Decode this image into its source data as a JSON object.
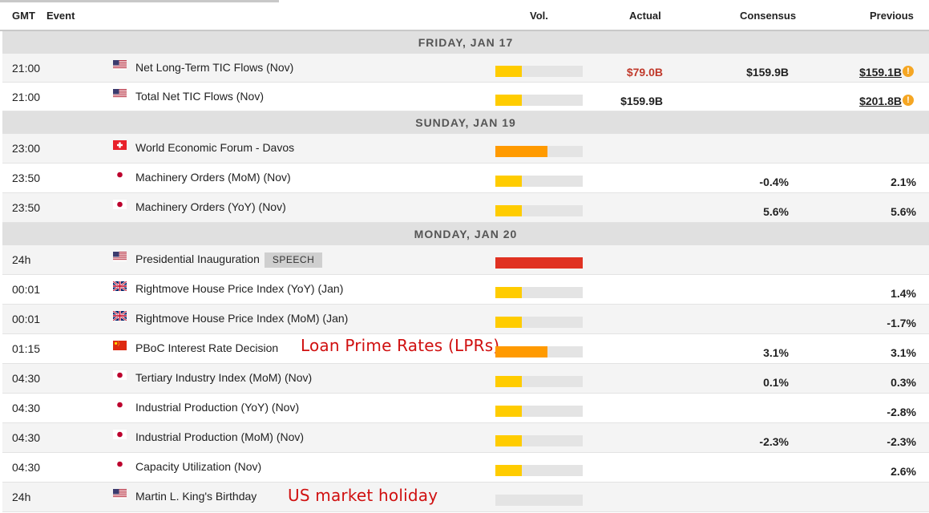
{
  "header": {
    "gmt": "GMT",
    "event": "Event",
    "vol": "Vol.",
    "actual": "Actual",
    "consensus": "Consensus",
    "previous": "Previous"
  },
  "colors": {
    "vol_low": "#ffcc00",
    "vol_medium": "#ff9a00",
    "vol_high": "#e03222",
    "actual_worse": "#c0392b",
    "info_icon": "#f5a623",
    "annotation_text": "#d01010"
  },
  "groups": [
    {
      "day": "FRIDAY, JAN 17",
      "rows": [
        {
          "time": "21:00",
          "flag": "us",
          "event": "Net Long-Term TIC Flows (Nov)",
          "vol_level": 1,
          "actual": "$79.0B",
          "actual_color": "#c0392b",
          "consensus": "$159.9B",
          "previous": "$159.1B",
          "revised_icon": "info-icon",
          "revised_icon_glyph": "!"
        },
        {
          "time": "21:00",
          "flag": "us",
          "event": "Total Net TIC Flows (Nov)",
          "vol_level": 1,
          "actual": "$159.9B",
          "consensus": "",
          "previous": "$201.8B",
          "revised_icon": "info-icon",
          "revised_icon_glyph": "!"
        }
      ]
    },
    {
      "day": "SUNDAY, JAN 19",
      "rows": [
        {
          "time": "23:00",
          "flag": "ch",
          "event": "World Economic Forum - Davos",
          "vol_level": 2,
          "actual": "",
          "consensus": "",
          "previous": ""
        },
        {
          "time": "23:50",
          "flag": "jp",
          "event": "Machinery Orders (MoM) (Nov)",
          "vol_level": 1,
          "actual": "",
          "consensus": "-0.4%",
          "previous": "2.1%"
        },
        {
          "time": "23:50",
          "flag": "jp",
          "event": "Machinery Orders (YoY) (Nov)",
          "vol_level": 1,
          "actual": "",
          "consensus": "5.6%",
          "previous": "5.6%"
        }
      ]
    },
    {
      "day": "MONDAY, JAN 20",
      "rows": [
        {
          "time": "24h",
          "flag": "us",
          "event": "Presidential Inauguration",
          "tag": "SPEECH",
          "vol_level": 3,
          "actual": "",
          "consensus": "",
          "previous": ""
        },
        {
          "time": "00:01",
          "flag": "gb",
          "event": "Rightmove House Price Index (YoY) (Jan)",
          "vol_level": 1,
          "actual": "",
          "consensus": "",
          "previous": "1.4%"
        },
        {
          "time": "00:01",
          "flag": "gb",
          "event": "Rightmove House Price Index (MoM) (Jan)",
          "vol_level": 1,
          "actual": "",
          "consensus": "",
          "previous": "-1.7%"
        },
        {
          "time": "01:15",
          "flag": "cn",
          "event": "PBoC Interest Rate Decision",
          "note": "Loan Prime Rates (LPRs)",
          "vol_level": 2,
          "actual": "",
          "consensus": "3.1%",
          "previous": "3.1%"
        },
        {
          "time": "04:30",
          "flag": "jp",
          "event": "Tertiary Industry Index (MoM) (Nov)",
          "vol_level": 1,
          "actual": "",
          "consensus": "0.1%",
          "previous": "0.3%"
        },
        {
          "time": "04:30",
          "flag": "jp",
          "event": "Industrial Production (YoY) (Nov)",
          "vol_level": 1,
          "actual": "",
          "consensus": "",
          "previous": "-2.8%"
        },
        {
          "time": "04:30",
          "flag": "jp",
          "event": "Industrial Production (MoM) (Nov)",
          "vol_level": 1,
          "actual": "",
          "consensus": "-2.3%",
          "previous": "-2.3%"
        },
        {
          "time": "04:30",
          "flag": "jp",
          "event": "Capacity Utilization (Nov)",
          "vol_level": 1,
          "actual": "",
          "consensus": "",
          "previous": "2.6%"
        },
        {
          "time": "24h",
          "flag": "us",
          "event": "Martin L. King's Birthday",
          "note": "US market holiday",
          "vol_level": 0,
          "actual": "",
          "consensus": "",
          "previous": ""
        }
      ]
    }
  ]
}
